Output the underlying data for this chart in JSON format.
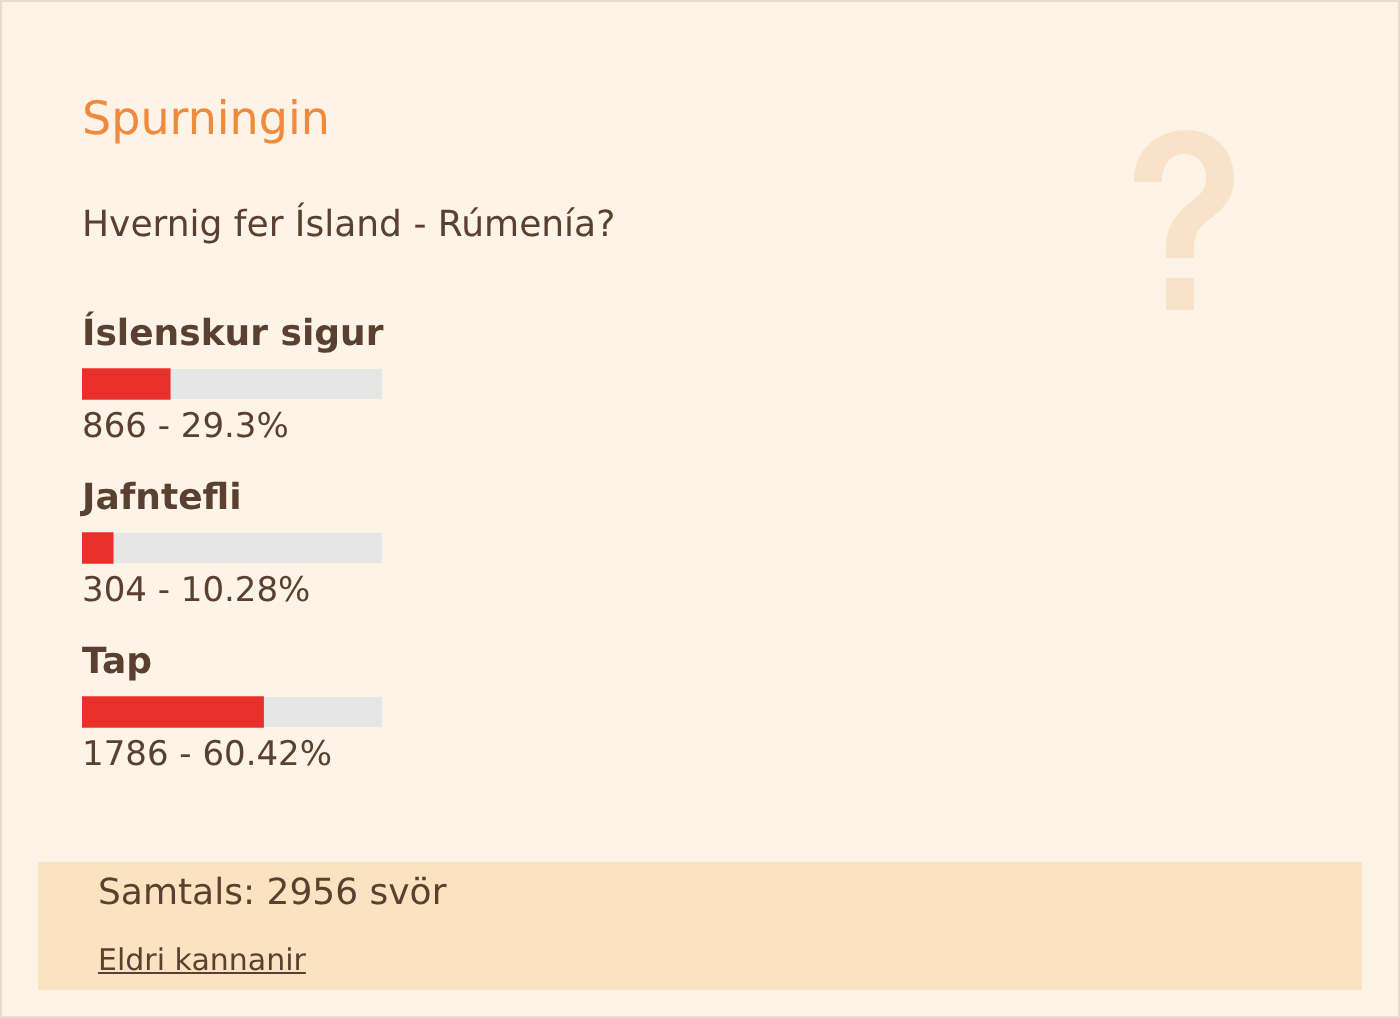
{
  "chart_data": {
    "type": "bar",
    "orientation": "horizontal",
    "title": "Spurningin",
    "subtitle": "Hvernig fer Ísland - Rúmenía?",
    "categories": [
      "Íslenskur sigur",
      "Jafntefli",
      "Tap"
    ],
    "values": [
      866,
      304,
      1786
    ],
    "value_labels": [
      "866 - 29.3%",
      "304 - 10.28%",
      "1786 - 60.42%"
    ],
    "color": "#e8302a",
    "xlim": [
      0,
      2956
    ],
    "tick_labels": false,
    "annotations": [
      "Samtals: 2956 svör",
      "Eldri kannanir"
    ]
  }
}
